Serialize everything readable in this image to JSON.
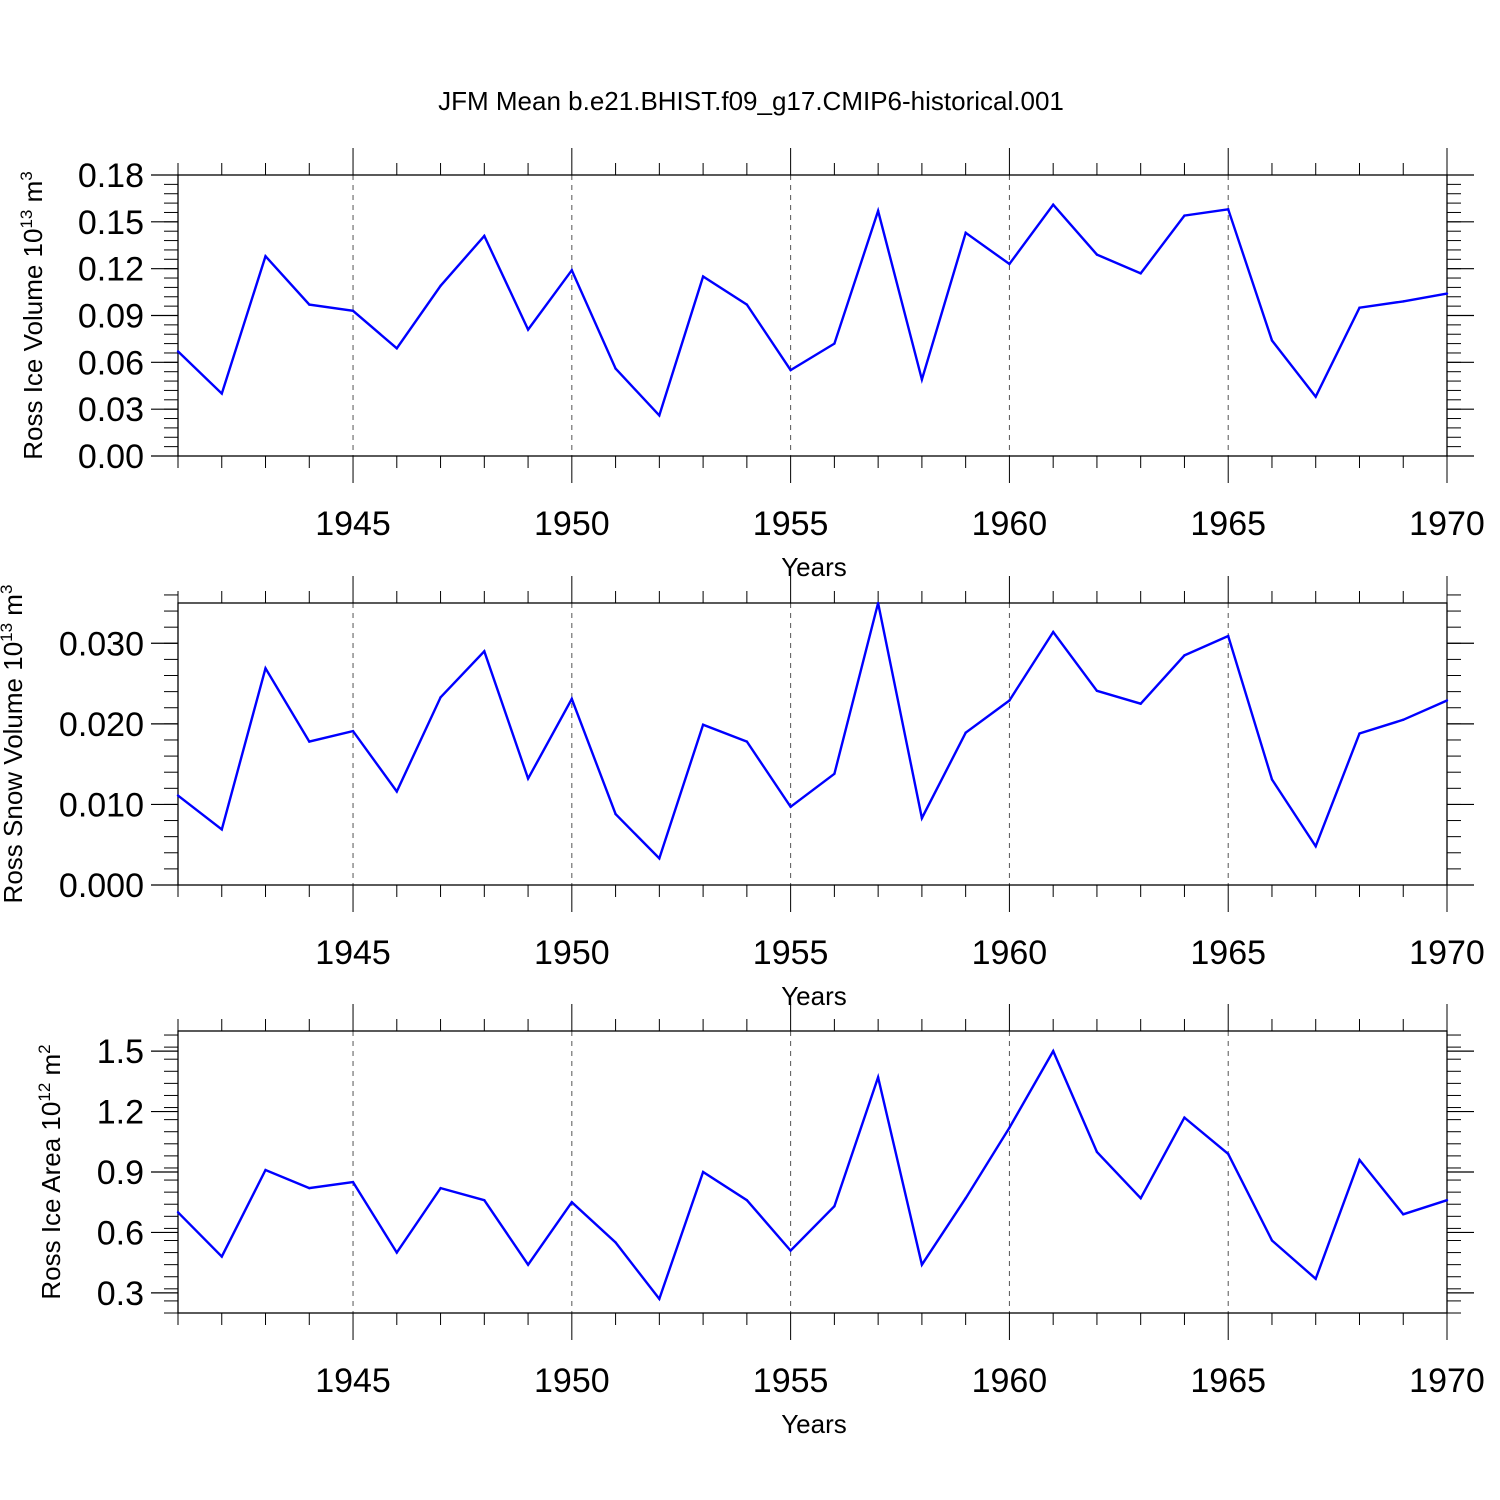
{
  "figure": {
    "title": "JFM Mean b.e21.BHIST.f09_g17.CMIP6-historical.001",
    "line_color": "#0000ff",
    "grid_color": "#555555",
    "axis_color": "#000000"
  },
  "chart_data": [
    {
      "type": "line",
      "title": "",
      "ylabel_main": "Ross Ice Volume 10",
      "ylabel_sup": "13",
      "ylabel_unit": " m",
      "ylabel_unit_sup": "3",
      "xlabel": "Years",
      "xlim": [
        1941,
        1970
      ],
      "ylim": [
        0.0,
        0.18
      ],
      "xticks": [
        1945,
        1950,
        1955,
        1960,
        1965,
        1970
      ],
      "xtick_labels": [
        "1945",
        "1950",
        "1955",
        "1960",
        "1965",
        "1970"
      ],
      "yticks": [
        0.0,
        0.03,
        0.06,
        0.09,
        0.12,
        0.15,
        0.18
      ],
      "ytick_labels": [
        "0.00",
        "0.03",
        "0.06",
        "0.09",
        "0.12",
        "0.15",
        "0.18"
      ],
      "yminor_step": 0.006,
      "grid": "vertical dashed at major x ticks",
      "x": [
        1941,
        1942,
        1943,
        1944,
        1945,
        1946,
        1947,
        1948,
        1949,
        1950,
        1951,
        1952,
        1953,
        1954,
        1955,
        1956,
        1957,
        1958,
        1959,
        1960,
        1961,
        1962,
        1963,
        1964,
        1965,
        1966,
        1967,
        1968,
        1969,
        1970
      ],
      "series": [
        {
          "name": "Ross Ice Volume",
          "values": [
            0.067,
            0.04,
            0.128,
            0.097,
            0.093,
            0.069,
            0.109,
            0.141,
            0.081,
            0.119,
            0.056,
            0.026,
            0.115,
            0.097,
            0.055,
            0.072,
            0.157,
            0.049,
            0.143,
            0.123,
            0.161,
            0.129,
            0.117,
            0.154,
            0.158,
            0.074,
            0.038,
            0.095,
            0.099,
            0.104
          ]
        }
      ]
    },
    {
      "type": "line",
      "title": "",
      "ylabel_main": "Ross Snow Volume 10",
      "ylabel_sup": "13",
      "ylabel_unit": " m",
      "ylabel_unit_sup": "3",
      "xlabel": "Years",
      "xlim": [
        1941,
        1970
      ],
      "ylim": [
        0.0,
        0.035
      ],
      "xticks": [
        1945,
        1950,
        1955,
        1960,
        1965,
        1970
      ],
      "xtick_labels": [
        "1945",
        "1950",
        "1955",
        "1960",
        "1965",
        "1970"
      ],
      "yticks": [
        0.0,
        0.01,
        0.02,
        0.03
      ],
      "ytick_labels": [
        "0.000",
        "0.010",
        "0.020",
        "0.030"
      ],
      "yminor_step": 0.002,
      "grid": "vertical dashed at major x ticks",
      "x": [
        1941,
        1942,
        1943,
        1944,
        1945,
        1946,
        1947,
        1948,
        1949,
        1950,
        1951,
        1952,
        1953,
        1954,
        1955,
        1956,
        1957,
        1958,
        1959,
        1960,
        1961,
        1962,
        1963,
        1964,
        1965,
        1966,
        1967,
        1968,
        1969,
        1970
      ],
      "series": [
        {
          "name": "Ross Snow Volume",
          "values": [
            0.0111,
            0.0069,
            0.0269,
            0.0178,
            0.0191,
            0.0116,
            0.0233,
            0.029,
            0.0132,
            0.0231,
            0.0088,
            0.0033,
            0.0199,
            0.0178,
            0.0097,
            0.0138,
            0.035,
            0.0083,
            0.0189,
            0.0229,
            0.0314,
            0.0241,
            0.0225,
            0.0285,
            0.0309,
            0.0131,
            0.0048,
            0.0188,
            0.0205,
            0.0229
          ]
        }
      ]
    },
    {
      "type": "line",
      "title": "",
      "ylabel_main": "Ross Ice Area 10",
      "ylabel_sup": "12",
      "ylabel_unit": " m",
      "ylabel_unit_sup": "2",
      "xlabel": "Years",
      "xlim": [
        1941,
        1970
      ],
      "ylim": [
        0.2,
        1.6
      ],
      "xticks": [
        1945,
        1950,
        1955,
        1960,
        1965,
        1970
      ],
      "xtick_labels": [
        "1945",
        "1950",
        "1955",
        "1960",
        "1965",
        "1970"
      ],
      "yticks": [
        0.3,
        0.6,
        0.9,
        1.2,
        1.5
      ],
      "ytick_labels": [
        "0.3",
        "0.6",
        "0.9",
        "1.2",
        "1.5"
      ],
      "yminor_step": 0.06,
      "grid": "vertical dashed at major x ticks",
      "x": [
        1941,
        1942,
        1943,
        1944,
        1945,
        1946,
        1947,
        1948,
        1949,
        1950,
        1951,
        1952,
        1953,
        1954,
        1955,
        1956,
        1957,
        1958,
        1959,
        1960,
        1961,
        1962,
        1963,
        1964,
        1965,
        1966,
        1967,
        1968,
        1969,
        1970
      ],
      "series": [
        {
          "name": "Ross Ice Area",
          "values": [
            0.7,
            0.48,
            0.91,
            0.82,
            0.85,
            0.5,
            0.82,
            0.76,
            0.44,
            0.75,
            0.55,
            0.27,
            0.9,
            0.76,
            0.51,
            0.73,
            1.37,
            0.44,
            0.77,
            1.12,
            1.5,
            1.0,
            0.77,
            1.17,
            0.99,
            0.56,
            0.37,
            0.96,
            0.69,
            0.76
          ]
        }
      ]
    }
  ]
}
